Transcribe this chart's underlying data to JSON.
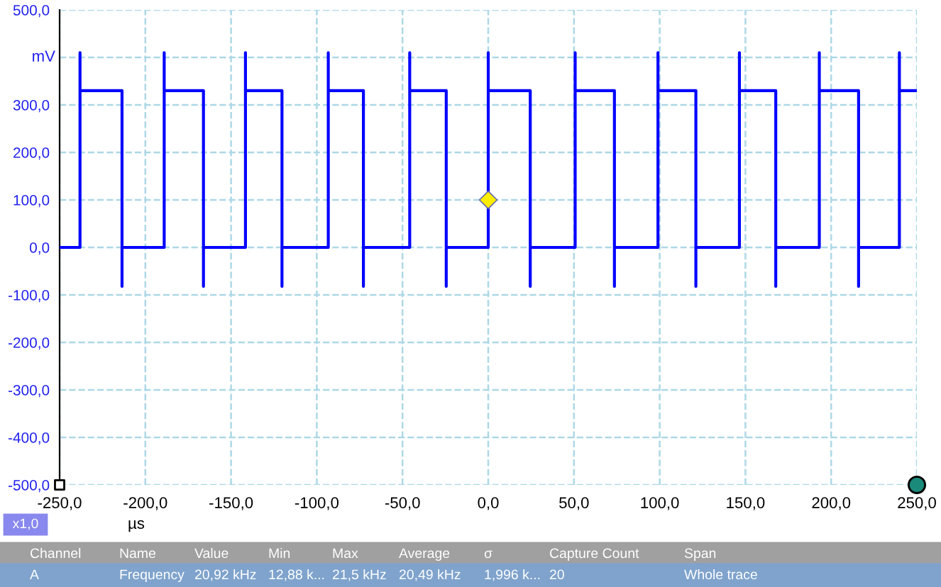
{
  "chart_data": {
    "type": "line",
    "xlabel": "µs",
    "ylabel": "mV",
    "series": [
      {
        "color": "#0000ff",
        "x": [
          -250,
          -238.1,
          -238.1,
          -238.1,
          -213.6,
          -213.6,
          -213.6,
          -189.0,
          -189.0,
          -189.0,
          -166.1,
          -166.1,
          -166.1,
          -141.6,
          -141.6,
          -141.6,
          -120.3,
          -120.3,
          -120.3,
          -93.3,
          -93.3,
          -93.3,
          -72.8,
          -72.8,
          -72.8,
          -45.8,
          -45.8,
          -45.8,
          -24.5,
          -24.5,
          -24.5,
          0,
          0,
          0,
          24.5,
          24.5,
          24.5,
          50.7,
          50.7,
          50.7,
          73.6,
          73.6,
          73.6,
          99.0,
          99.0,
          99.0,
          121.1,
          121.1,
          121.1,
          146.5,
          146.5,
          146.5,
          167.7,
          167.7,
          167.7,
          193.1,
          193.1,
          193.1,
          216.0,
          216.0,
          216.0,
          239.8,
          239.8,
          239.8,
          250
        ],
        "values": [
          0,
          0,
          410,
          330,
          330,
          -82,
          0,
          0,
          410,
          330,
          330,
          -82,
          0,
          0,
          410,
          330,
          330,
          -82,
          0,
          0,
          410,
          330,
          330,
          -82,
          0,
          0,
          410,
          330,
          330,
          -82,
          0,
          0,
          410,
          330,
          330,
          -82,
          0,
          0,
          410,
          330,
          330,
          -82,
          0,
          0,
          410,
          330,
          330,
          -82,
          0,
          0,
          410,
          330,
          330,
          -82,
          0,
          0,
          410,
          330,
          330,
          -82,
          0,
          0,
          410,
          330,
          330
        ]
      },
      {
        "type": "scatter",
        "color": "#ffee00",
        "marker": "diamond",
        "x": [
          0
        ],
        "values": [
          100
        ]
      }
    ],
    "xlim": [
      -250,
      250
    ],
    "ylim": [
      -500,
      500
    ],
    "xticks": [
      {
        "value": -250,
        "label": "-250,0"
      },
      {
        "value": -200,
        "label": "-200,0"
      },
      {
        "value": -150,
        "label": "-150,0"
      },
      {
        "value": -100,
        "label": "-100,0"
      },
      {
        "value": -50,
        "label": "-50,0"
      },
      {
        "value": 0,
        "label": "0,0"
      },
      {
        "value": 50,
        "label": "50,0"
      },
      {
        "value": 100,
        "label": "100,0"
      },
      {
        "value": 150,
        "label": "150,0"
      },
      {
        "value": 200,
        "label": "200,0"
      },
      {
        "value": 250,
        "label": "250,0"
      }
    ],
    "yticks": [
      {
        "value": -500,
        "label": "-500,0"
      },
      {
        "value": -400,
        "label": "-400,0"
      },
      {
        "value": -300,
        "label": "-300,0"
      },
      {
        "value": -200,
        "label": "-200,0"
      },
      {
        "value": -100,
        "label": "-100,0"
      },
      {
        "value": 0,
        "label": "0,0"
      },
      {
        "value": 100,
        "label": "100,0"
      },
      {
        "value": 200,
        "label": "200,0"
      },
      {
        "value": 300,
        "label": "300,0"
      },
      {
        "value": 400,
        "label": null
      },
      {
        "value": 500,
        "label": "500,0"
      }
    ],
    "grid": true,
    "line_style": "solid",
    "annotations": [
      "x1,0",
      "Channel",
      "Name",
      "Value",
      "Min",
      "Max",
      "Average",
      "σ",
      "Capture Count",
      "Span",
      "A",
      "Frequency",
      "20,92 kHz",
      "12,88 k...",
      "21,5 kHz",
      "20,49 kHz",
      "1,996 k...",
      "20",
      "Whole trace"
    ]
  }
}
